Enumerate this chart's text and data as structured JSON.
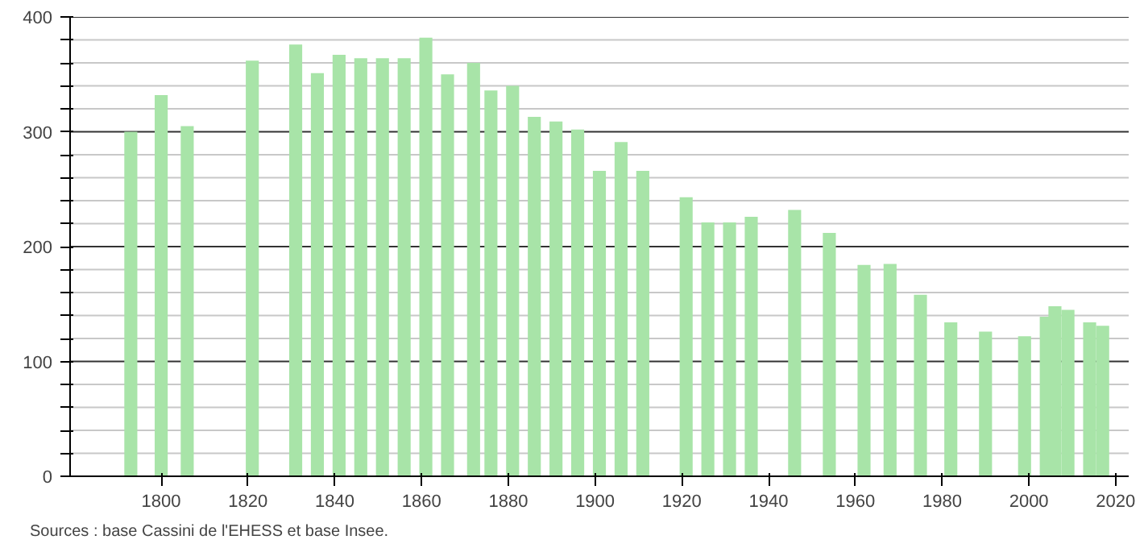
{
  "chart_data": {
    "type": "bar",
    "color": "#a8e4a8",
    "x": [
      1793,
      1800,
      1806,
      1821,
      1831,
      1836,
      1841,
      1846,
      1851,
      1856,
      1861,
      1866,
      1872,
      1876,
      1881,
      1886,
      1891,
      1896,
      1901,
      1906,
      1911,
      1921,
      1926,
      1931,
      1936,
      1946,
      1954,
      1962,
      1968,
      1975,
      1982,
      1990,
      1999,
      2004,
      2006,
      2009,
      2014,
      2017
    ],
    "values": [
      300,
      332,
      305,
      362,
      376,
      351,
      367,
      364,
      364,
      364,
      382,
      350,
      360,
      336,
      340,
      313,
      309,
      302,
      266,
      291,
      266,
      243,
      221,
      221,
      226,
      232,
      212,
      184,
      185,
      158,
      134,
      126,
      122,
      139,
      148,
      145,
      134,
      131
    ],
    "xlim": [
      1779,
      2023
    ],
    "xticks": [
      1800,
      1820,
      1840,
      1860,
      1880,
      1900,
      1920,
      1940,
      1960,
      1980,
      2000,
      2020
    ],
    "ylim": [
      0,
      400
    ],
    "yticks": [
      0,
      {
        "value": 20,
        "label": null
      },
      {
        "value": 40,
        "label": null
      },
      {
        "value": 60,
        "label": null
      },
      {
        "value": 80,
        "label": null
      },
      100,
      {
        "value": 120,
        "label": null
      },
      {
        "value": 140,
        "label": null
      },
      {
        "value": 160,
        "label": null
      },
      {
        "value": 180,
        "label": null
      },
      200,
      {
        "value": 220,
        "label": null
      },
      {
        "value": 240,
        "label": null
      },
      {
        "value": 260,
        "label": null
      },
      {
        "value": 280,
        "label": null
      },
      300,
      {
        "value": 320,
        "label": null
      },
      {
        "value": 340,
        "label": null
      },
      {
        "value": 360,
        "label": null
      },
      {
        "value": 380,
        "label": null
      },
      400
    ],
    "grid": "y",
    "annotations": [
      "Sources : base Cassini de l'EHESS et base Insee."
    ]
  }
}
